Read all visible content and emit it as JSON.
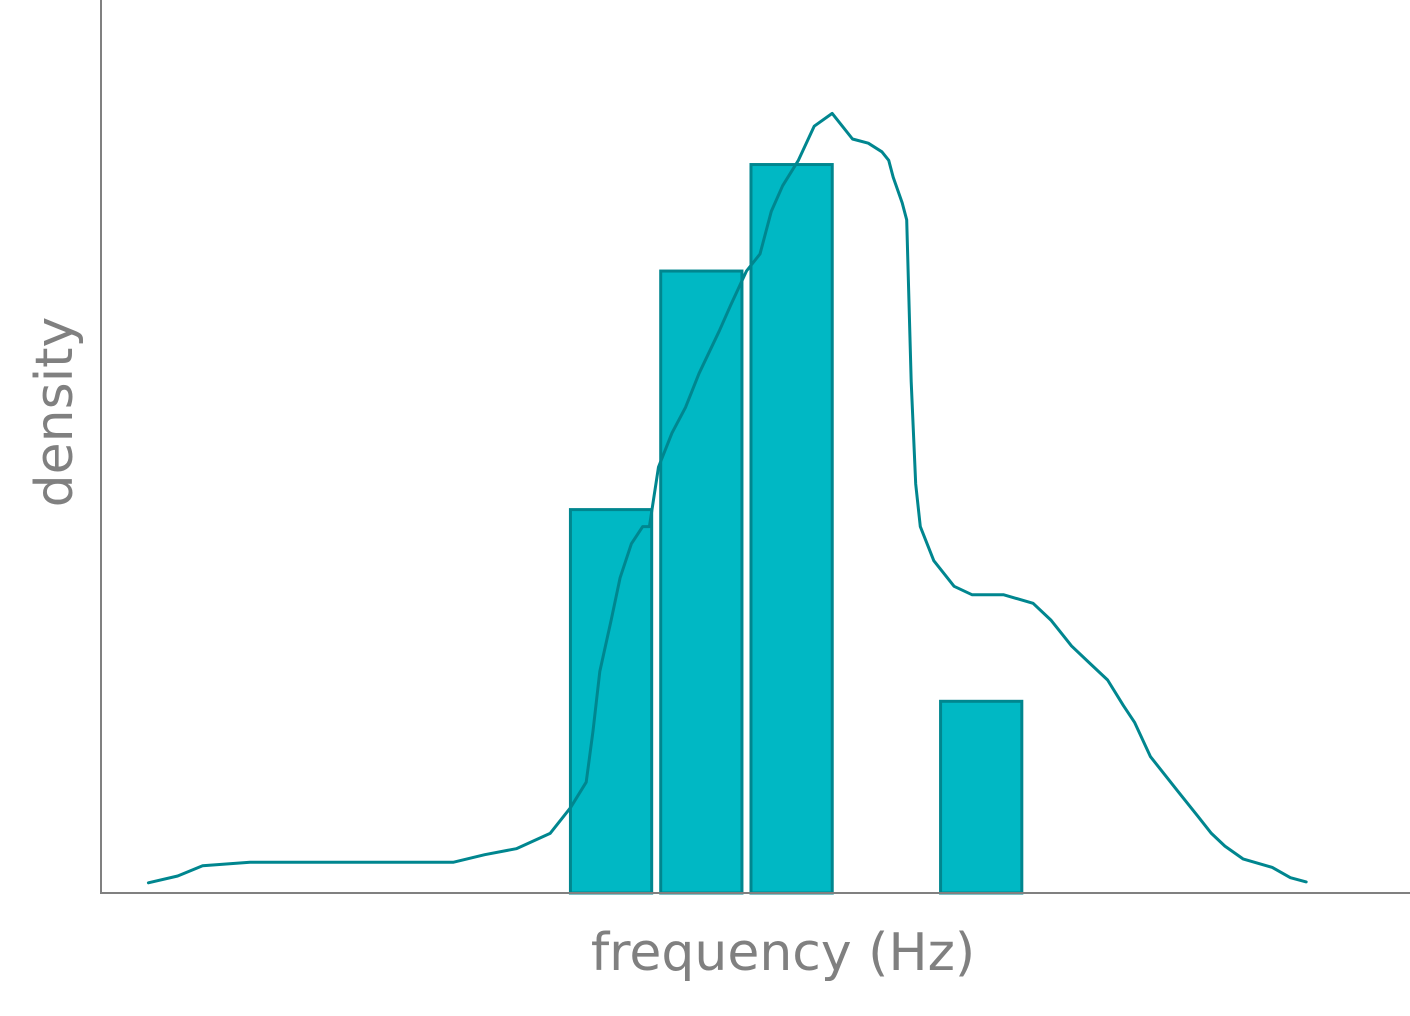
{
  "chart_data": {
    "type": "bar",
    "xlabel": "frequency (Hz)",
    "ylabel": "density",
    "x_ticks": [],
    "y_ticks": [],
    "xlim": [
      0,
      29
    ],
    "ylim": [
      0,
      1
    ],
    "grid": false,
    "bars": [
      {
        "x0": 10.4,
        "x1": 12.2,
        "value": 0.45
      },
      {
        "x0": 12.4,
        "x1": 14.2,
        "value": 0.73
      },
      {
        "x0": 14.4,
        "x1": 16.2,
        "value": 0.855
      },
      {
        "x0": 18.6,
        "x1": 20.4,
        "value": 0.225
      }
    ],
    "density_curve": [
      [
        1.05,
        0.012
      ],
      [
        1.7,
        0.02
      ],
      [
        2.25,
        0.032
      ],
      [
        3.3,
        0.036
      ],
      [
        5.0,
        0.036
      ],
      [
        7.8,
        0.036
      ],
      [
        8.5,
        0.045
      ],
      [
        9.2,
        0.052
      ],
      [
        9.95,
        0.07
      ],
      [
        10.4,
        0.1
      ],
      [
        10.75,
        0.13
      ],
      [
        10.9,
        0.19
      ],
      [
        11.05,
        0.26
      ],
      [
        11.3,
        0.32
      ],
      [
        11.5,
        0.37
      ],
      [
        11.75,
        0.41
      ],
      [
        12.0,
        0.43
      ],
      [
        12.15,
        0.43
      ],
      [
        12.35,
        0.5
      ],
      [
        12.65,
        0.54
      ],
      [
        12.95,
        0.57
      ],
      [
        13.25,
        0.61
      ],
      [
        13.7,
        0.66
      ],
      [
        13.95,
        0.69
      ],
      [
        14.3,
        0.73
      ],
      [
        14.6,
        0.75
      ],
      [
        14.85,
        0.8
      ],
      [
        15.1,
        0.83
      ],
      [
        15.45,
        0.86
      ],
      [
        15.8,
        0.9
      ],
      [
        16.2,
        0.915
      ],
      [
        16.65,
        0.885
      ],
      [
        17.0,
        0.88
      ],
      [
        17.3,
        0.87
      ],
      [
        17.45,
        0.86
      ],
      [
        17.55,
        0.84
      ],
      [
        17.75,
        0.81
      ],
      [
        17.85,
        0.79
      ],
      [
        17.95,
        0.6
      ],
      [
        18.05,
        0.48
      ],
      [
        18.15,
        0.43
      ],
      [
        18.45,
        0.39
      ],
      [
        18.9,
        0.36
      ],
      [
        19.3,
        0.35
      ],
      [
        20.0,
        0.35
      ],
      [
        20.65,
        0.34
      ],
      [
        21.05,
        0.32
      ],
      [
        21.5,
        0.29
      ],
      [
        21.9,
        0.27
      ],
      [
        22.3,
        0.25
      ],
      [
        22.65,
        0.22
      ],
      [
        22.9,
        0.2
      ],
      [
        23.25,
        0.16
      ],
      [
        23.85,
        0.12
      ],
      [
        24.3,
        0.09
      ],
      [
        24.6,
        0.07
      ],
      [
        24.9,
        0.055
      ],
      [
        25.3,
        0.04
      ],
      [
        25.95,
        0.03
      ],
      [
        26.35,
        0.018
      ],
      [
        26.7,
        0.013
      ]
    ]
  }
}
